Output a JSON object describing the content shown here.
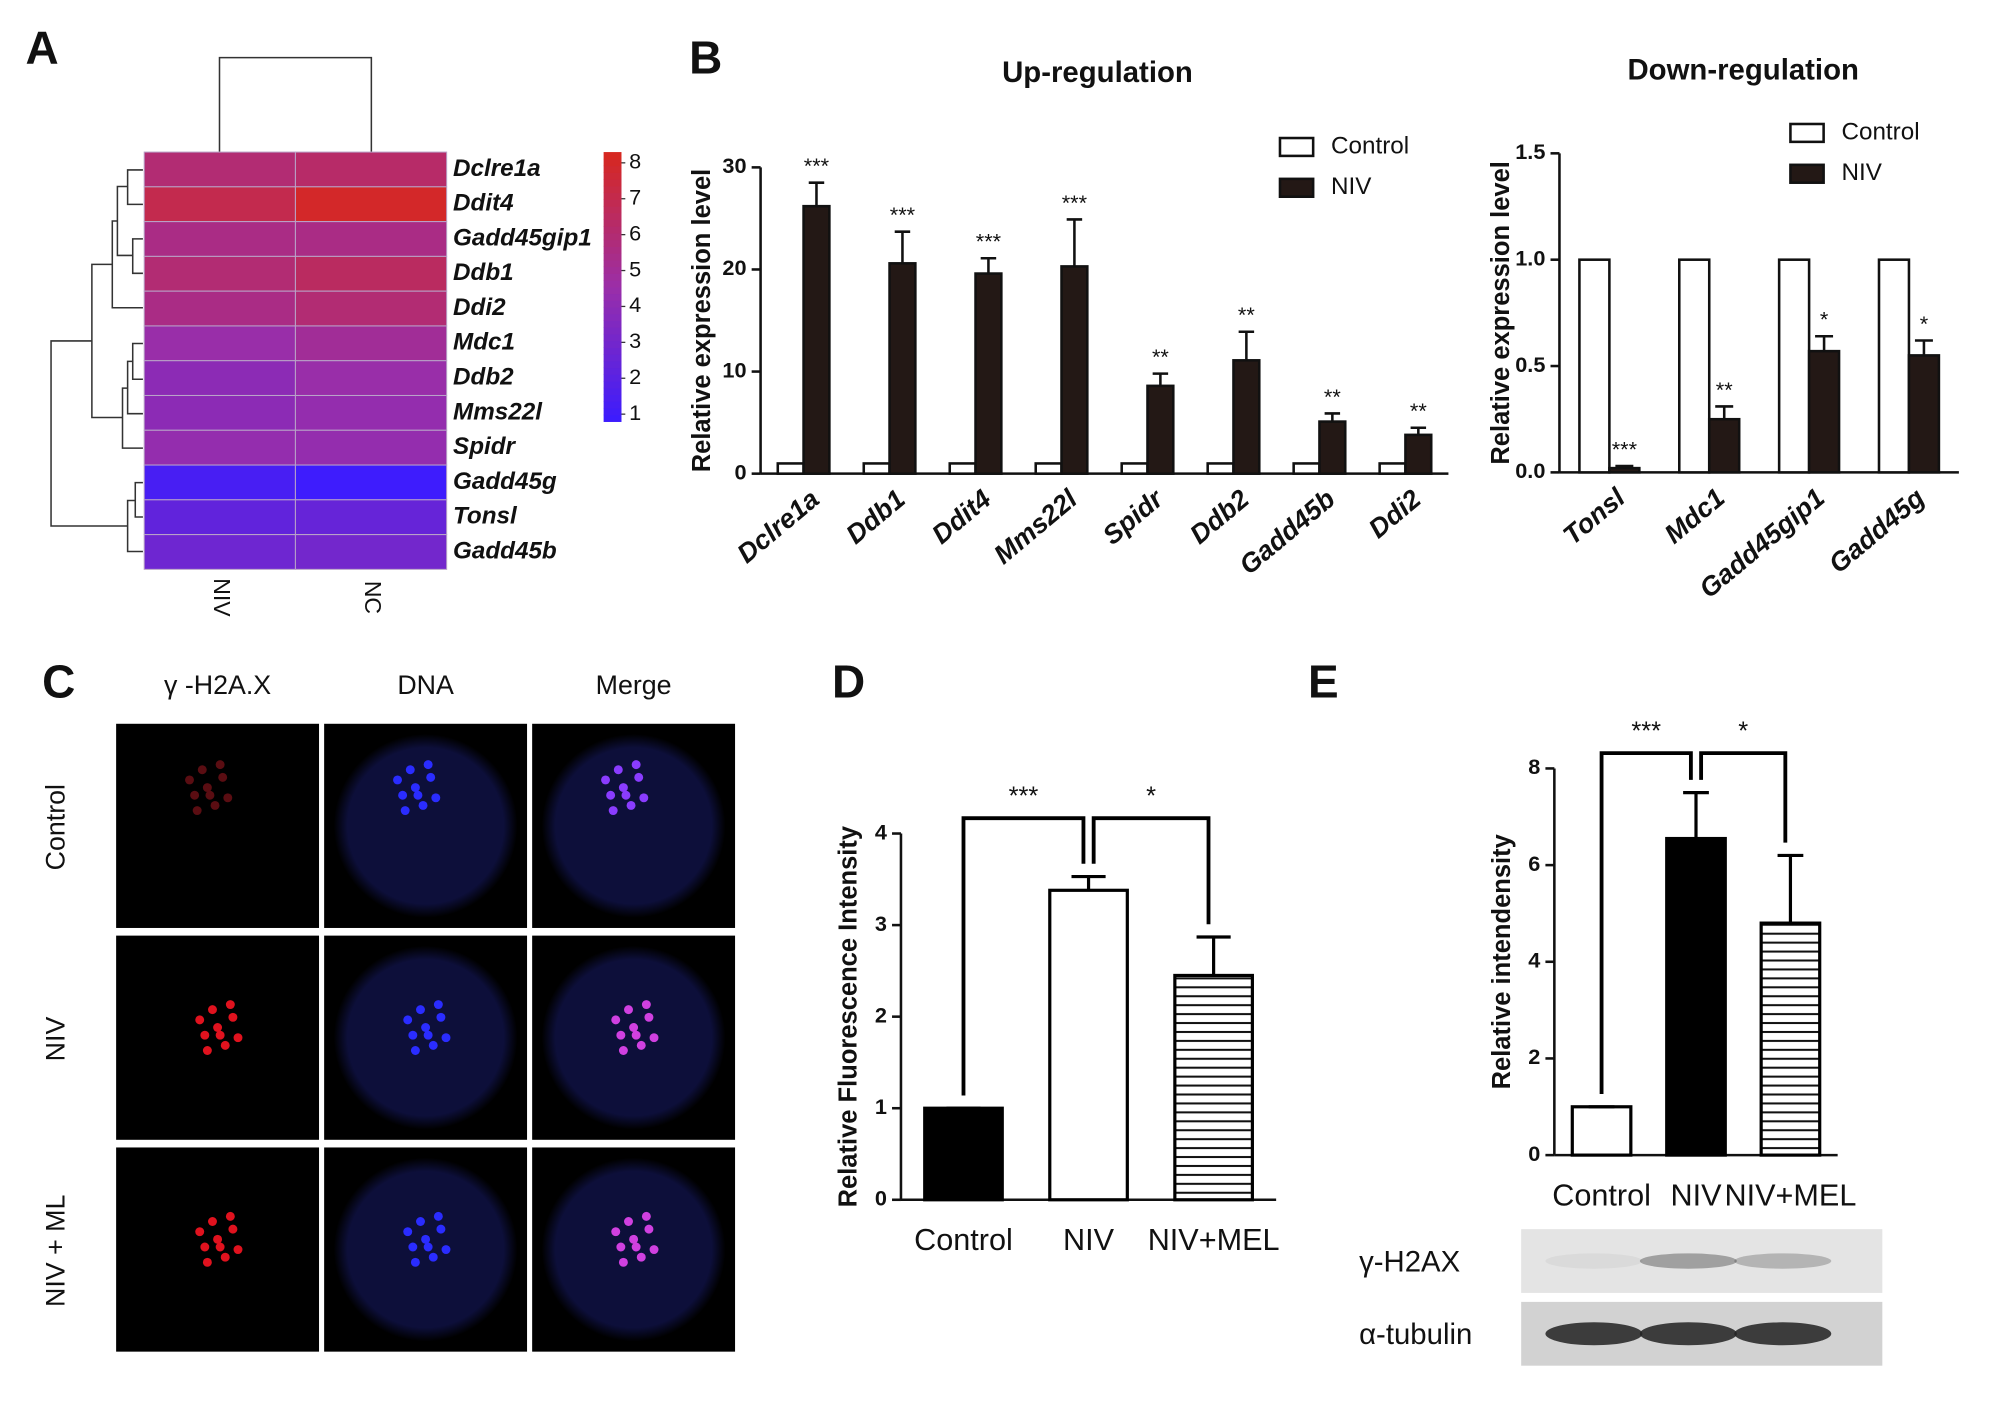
{
  "chart_data": [
    {
      "type": "heatmap",
      "panel": "A",
      "rows": [
        "Dclre1a",
        "Ddit4",
        "Gadd45gip1",
        "Ddb1",
        "Ddi2",
        "Mdc1",
        "Ddb2",
        "Mms22l",
        "Spidr",
        "Gadd45g",
        "Tonsl",
        "Gadd45b"
      ],
      "columns": [
        "NIV",
        "NC"
      ],
      "values": [
        [
          6.0,
          6.3
        ],
        [
          7.0,
          8.0
        ],
        [
          5.5,
          5.5
        ],
        [
          6.0,
          6.5
        ],
        [
          5.5,
          6.0
        ],
        [
          4.5,
          5.0
        ],
        [
          4.0,
          4.5
        ],
        [
          4.0,
          4.3
        ],
        [
          4.3,
          4.3
        ],
        [
          1.3,
          0.9
        ],
        [
          2.3,
          2.5
        ],
        [
          2.8,
          3.0
        ]
      ],
      "zlim": [
        0.8,
        8.3
      ],
      "zticks": [
        1,
        2,
        3,
        4,
        5,
        6,
        7,
        8
      ],
      "colors": [
        "#3b1cff",
        "#9a2ea8",
        "#d8281e"
      ]
    },
    {
      "type": "grouped-bar",
      "panel": "B",
      "title": "Up-regulation",
      "ylabel": "Relative expression level",
      "categories": [
        "Dclre1a",
        "Ddb1",
        "Ddit4",
        "Mms22l",
        "Spidr",
        "Ddb2",
        "Gadd45b",
        "Ddi2"
      ],
      "series": [
        {
          "name": "Control",
          "color": "#ffffff",
          "values": [
            1,
            1,
            1,
            1,
            1,
            1,
            1,
            1
          ]
        },
        {
          "name": "NIV",
          "color": "#231815",
          "values": [
            26.2,
            20.6,
            19.6,
            20.3,
            8.6,
            11.1,
            5.1,
            3.8
          ],
          "errors": [
            2.3,
            3.1,
            1.5,
            4.6,
            1.2,
            2.8,
            0.8,
            0.7
          ],
          "significance": [
            "***",
            "***",
            "***",
            "***",
            "**",
            "**",
            "**",
            "**"
          ]
        }
      ],
      "ylim": [
        0,
        30
      ],
      "yticks": [
        0,
        10,
        20,
        30
      ],
      "legend": "upper right"
    },
    {
      "type": "grouped-bar",
      "title": "Down-regulation",
      "ylabel": "Relative expression level",
      "categories": [
        "Tonsl",
        "Mdc1",
        "Gadd45gip1",
        "Gadd45g"
      ],
      "series": [
        {
          "name": "Control",
          "color": "#ffffff",
          "values": [
            1,
            1,
            1,
            1
          ]
        },
        {
          "name": "NIV",
          "color": "#231815",
          "values": [
            0.02,
            0.25,
            0.57,
            0.55
          ],
          "errors": [
            0.01,
            0.06,
            0.07,
            0.07
          ],
          "significance": [
            "***",
            "**",
            "*",
            "*"
          ]
        }
      ],
      "ylim": [
        0,
        1.5
      ],
      "yticks": [
        {
          "value": 0,
          "label": "0.0"
        },
        0.5,
        {
          "value": 1,
          "label": "1.0"
        },
        1.5
      ],
      "legend": "upper right"
    },
    {
      "type": "image-grid",
      "panel": "C",
      "columns": [
        "γ -H2A.X",
        "DNA",
        "Merge"
      ],
      "rows": [
        "Control",
        "NIV",
        "NIV + ML"
      ]
    },
    {
      "type": "bar",
      "panel": "D",
      "ylabel": "Relative Fluorescence Intensity",
      "categories": [
        "Control",
        "NIV",
        "NIV+MEL"
      ],
      "values": [
        1,
        3.38,
        2.45
      ],
      "errors": [
        0,
        0.15,
        0.42
      ],
      "patterns": [
        "solid",
        "open",
        "hlines"
      ],
      "comparisons": [
        {
          "pair": [
            0,
            1
          ],
          "label": "***"
        },
        {
          "pair": [
            1,
            2
          ],
          "label": "*"
        }
      ],
      "ylim": [
        0,
        4
      ],
      "yticks": [
        0,
        1,
        2,
        3,
        4
      ]
    },
    {
      "type": "bar",
      "panel": "E",
      "ylabel": "Relative intendensity",
      "categories": [
        "Control",
        "NIV",
        "NIV+MEL"
      ],
      "values": [
        1,
        6.55,
        4.8
      ],
      "errors": [
        0,
        0.95,
        1.4
      ],
      "patterns": [
        "open",
        "solid",
        "hlines"
      ],
      "comparisons": [
        {
          "pair": [
            0,
            1
          ],
          "label": "***"
        },
        {
          "pair": [
            1,
            2
          ],
          "label": "*"
        }
      ],
      "ylim": [
        0,
        8
      ],
      "yticks": [
        0,
        2,
        4,
        6,
        8
      ],
      "blot_rows": [
        "γ-H2AX",
        "α-tubulin"
      ]
    }
  ]
}
